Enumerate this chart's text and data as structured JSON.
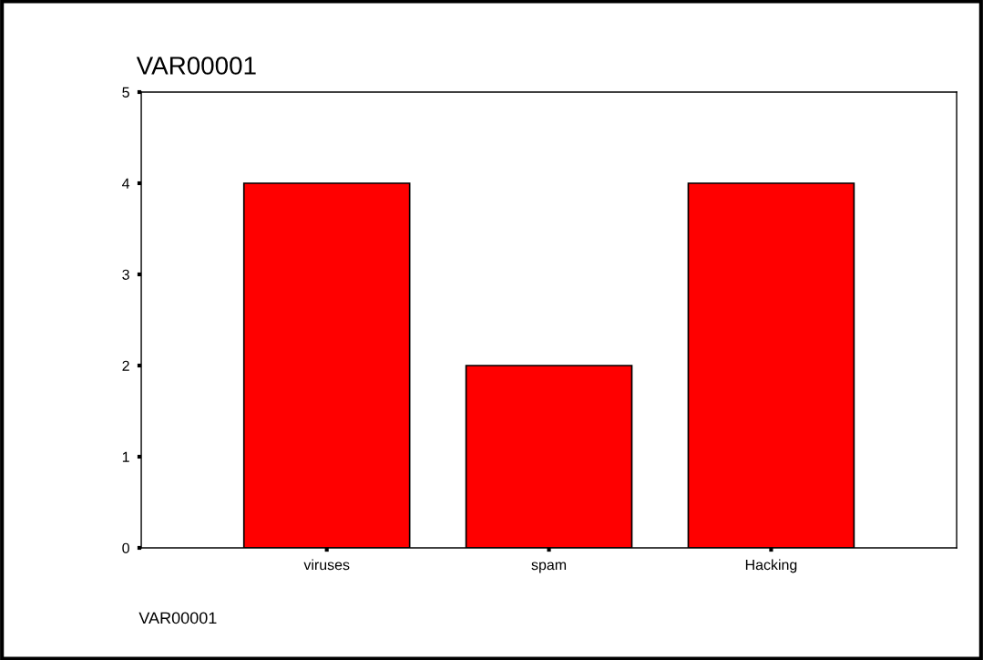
{
  "chart_data": {
    "type": "bar",
    "title": "VAR00001",
    "xlabel": "VAR00001",
    "categories": [
      "viruses",
      "spam",
      "Hacking"
    ],
    "values": [
      4,
      2,
      4
    ],
    "color": "#ff0000",
    "ylim": [
      0,
      5
    ],
    "yticks": [
      0,
      1,
      2,
      3,
      4,
      5
    ],
    "grid": false,
    "legend": false
  }
}
